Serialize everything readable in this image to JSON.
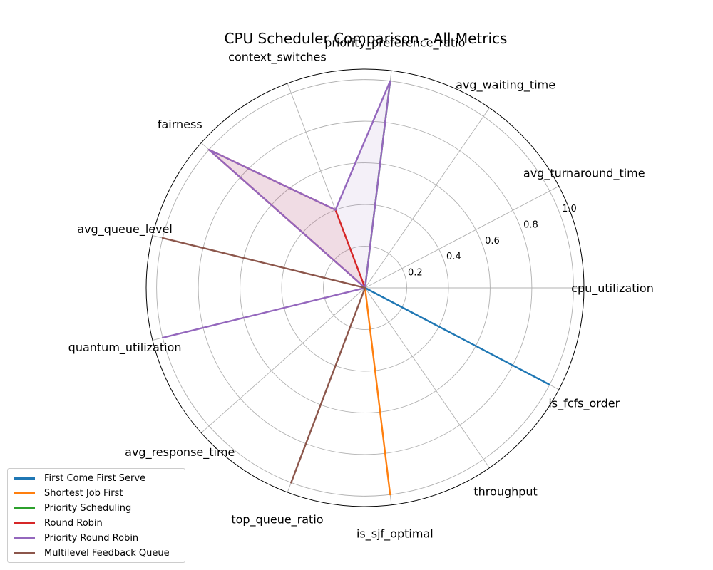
{
  "chart_data": {
    "type": "radar",
    "title": "CPU Scheduler Comparison - All Metrics",
    "axes": [
      "cpu_utilization",
      "avg_turnaround_time",
      "avg_waiting_time",
      "priority_preference_ratio",
      "context_switches",
      "fairness",
      "avg_queue_level",
      "quantum_utilization",
      "avg_response_time",
      "top_queue_ratio",
      "is_sjf_optimal",
      "throughput",
      "is_fcfs_order"
    ],
    "r_ticks": [
      "0.2",
      "0.4",
      "0.6",
      "0.8",
      "1.0"
    ],
    "r_tick_values": [
      0.2,
      0.4,
      0.6,
      0.8,
      1.0
    ],
    "rlim": [
      0,
      1.05
    ],
    "grid": true,
    "legend_position": "lower-left",
    "series": [
      {
        "name": "First Come First Serve",
        "color": "#1f77b4",
        "fill": false,
        "values": [
          0,
          0,
          0,
          0,
          0,
          0,
          0,
          0,
          0,
          0,
          0,
          0,
          1
        ]
      },
      {
        "name": "Shortest Job First",
        "color": "#ff7f0e",
        "fill": false,
        "values": [
          0,
          0,
          0,
          0,
          0,
          0,
          0,
          0,
          0,
          0,
          1,
          0,
          0
        ]
      },
      {
        "name": "Priority Scheduling",
        "color": "#2ca02c",
        "fill": false,
        "values": [
          0,
          0,
          0,
          1,
          0,
          0,
          0,
          0,
          0,
          0,
          0,
          0,
          0
        ]
      },
      {
        "name": "Round Robin",
        "color": "#d62728",
        "fill": true,
        "values": [
          0,
          0,
          0,
          0,
          0.4,
          1,
          0,
          0,
          0,
          0,
          0,
          0,
          0
        ]
      },
      {
        "name": "Priority Round Robin",
        "color": "#9467bd",
        "fill": true,
        "values": [
          0,
          0,
          0,
          1,
          0.4,
          1,
          0,
          1,
          0,
          0,
          0,
          0,
          0
        ]
      },
      {
        "name": "Multilevel Feedback Queue",
        "color": "#8c564b",
        "fill": false,
        "values": [
          0,
          0,
          0,
          0,
          0,
          0,
          1,
          0,
          0,
          1,
          0,
          0,
          0
        ]
      }
    ]
  }
}
